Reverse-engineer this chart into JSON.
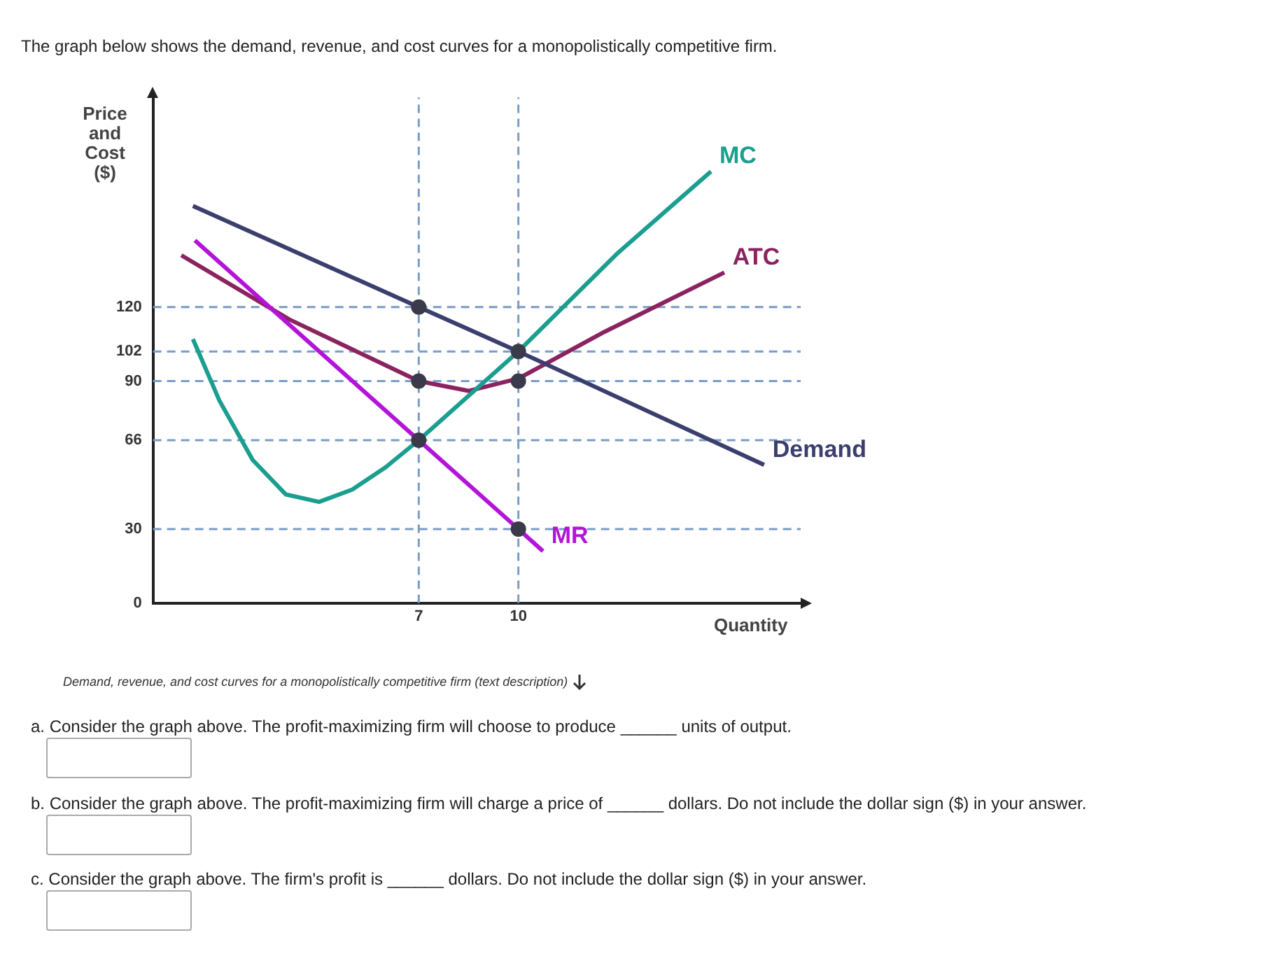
{
  "chart_data": {
    "type": "line",
    "title": "The graph below shows the demand, revenue, and cost curves for a monopolistically competitive firm.",
    "ylabel": "Price and Cost ($)",
    "xlabel": "Quantity",
    "xlim": [
      -1,
      18.5
    ],
    "xticks": [
      7,
      10
    ],
    "ylim": [
      0,
      205
    ],
    "yticks": [
      0,
      30,
      66,
      90,
      102,
      120
    ],
    "grid": false,
    "legend": false,
    "marker": "none",
    "line_style": "solid",
    "series": [
      {
        "name": "Demand",
        "color": "#3b3f6e",
        "x": [
          0.2,
          7,
          10,
          17.4
        ],
        "values": [
          161,
          120,
          102,
          56
        ]
      },
      {
        "name": "MR",
        "color": "#b414d8",
        "x": [
          0.26,
          7,
          10,
          10.74
        ],
        "values": [
          147,
          66,
          30,
          21
        ]
      },
      {
        "name": "MC",
        "color": "#1a9e8f",
        "x": [
          0.2,
          1,
          2,
          3,
          4,
          5,
          6,
          7,
          10,
          13,
          15.8
        ],
        "values": [
          107,
          82,
          58,
          44,
          41,
          46,
          55,
          66,
          102,
          142,
          175
        ]
      },
      {
        "name": "ATC",
        "color": "#8b2360",
        "x": [
          -0.15,
          3.1,
          7,
          8.5,
          10,
          12.6,
          16.2
        ],
        "values": [
          141,
          115,
          90,
          86,
          91,
          110,
          134
        ]
      },
      {
        "type": "scatter",
        "color": "#3a3a4a",
        "marker": "circle",
        "x": [
          7,
          7,
          7,
          10,
          10,
          10
        ],
        "values": [
          120,
          90,
          66,
          102,
          90,
          30
        ]
      }
    ],
    "ref_lines": [
      {
        "axis": "y",
        "value": 120,
        "color": "#7a9cc6",
        "line_style": "dashed"
      },
      {
        "axis": "y",
        "value": 102,
        "color": "#7a9cc6",
        "line_style": "dashed"
      },
      {
        "axis": "y",
        "value": 90,
        "color": "#7a9cc6",
        "line_style": "dashed"
      },
      {
        "axis": "y",
        "value": 66,
        "color": "#7a9cc6",
        "line_style": "dashed"
      },
      {
        "axis": "y",
        "value": 30,
        "color": "#7a9cc6",
        "line_style": "dashed"
      },
      {
        "axis": "x",
        "value": 7,
        "color": "#7a9cc6",
        "line_style": "dashed"
      },
      {
        "axis": "x",
        "value": 10,
        "color": "#7a9cc6",
        "line_style": "dashed"
      }
    ],
    "annotations": [
      "Demand, revenue, and cost curves for a monopolistically competitive firm (text description)",
      "a. Consider the graph above. The profit-maximizing firm will choose to produce ______ units of output.",
      "b. Consider the graph above. The profit-maximizing firm will charge a price of ______ dollars. Do not include the dollar sign ($) in your answer.",
      "c. Consider the graph above. The firm's profit is ______ dollars. Do not include the dollar sign ($) in your answer."
    ]
  }
}
